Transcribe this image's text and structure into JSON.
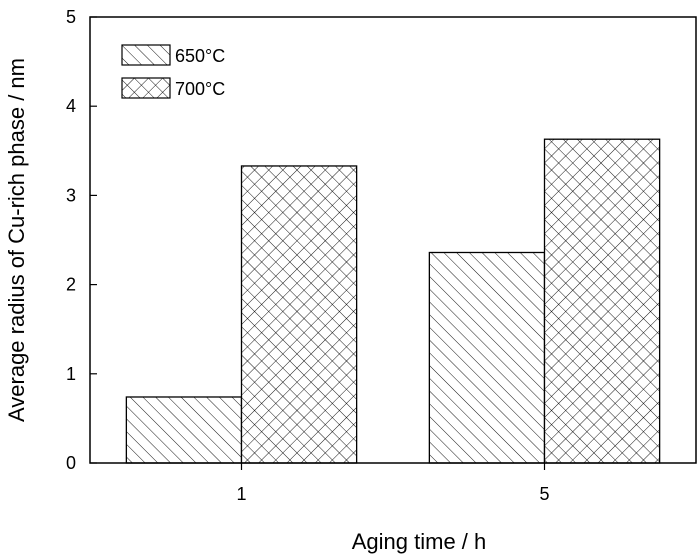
{
  "chart_data": {
    "type": "bar",
    "title": "",
    "xlabel": "Aging time / h",
    "ylabel": "Average radius of Cu-rich phase / nm",
    "categories": [
      "1",
      "5"
    ],
    "ylim": [
      0,
      5
    ],
    "yticks": [
      0,
      1,
      2,
      3,
      4,
      5
    ],
    "grid": false,
    "legend_position": "top-left",
    "series": [
      {
        "name": "650°C",
        "values": [
          0.74,
          2.36
        ],
        "pattern": "diagonal-hatch"
      },
      {
        "name": "700°C",
        "values": [
          3.33,
          3.63
        ],
        "pattern": "cross-hatch"
      }
    ],
    "colors": {
      "axis": "#000000",
      "bar_fill": "#ffffff",
      "hatch": "#000000"
    }
  }
}
